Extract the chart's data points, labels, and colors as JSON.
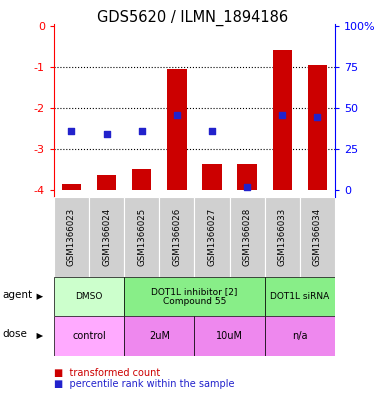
{
  "title": "GDS5620 / ILMN_1894186",
  "samples": [
    "GSM1366023",
    "GSM1366024",
    "GSM1366025",
    "GSM1366026",
    "GSM1366027",
    "GSM1366028",
    "GSM1366033",
    "GSM1366034"
  ],
  "bar_values": [
    -3.85,
    -3.62,
    -3.47,
    -1.05,
    -3.35,
    -3.35,
    -0.58,
    -0.95
  ],
  "percentile_values": [
    -2.55,
    -2.62,
    -2.57,
    -2.18,
    -2.55,
    -3.92,
    -2.18,
    -2.22
  ],
  "bar_bottom": -4.0,
  "ylim": [
    -4.15,
    0.05
  ],
  "yticks_left": [
    0,
    -1,
    -2,
    -3,
    -4
  ],
  "yticks_right_pos": [
    0,
    -1,
    -2,
    -3,
    -4
  ],
  "yticks_right_labels": [
    "100%",
    "75",
    "50",
    "25",
    "0"
  ],
  "bar_color": "#cc0000",
  "dot_color": "#2222cc",
  "agent_groups": [
    {
      "label": "DMSO",
      "start": 0,
      "end": 2,
      "color": "#ccffcc"
    },
    {
      "label": "DOT1L inhibitor [2]\nCompound 55",
      "start": 2,
      "end": 6,
      "color": "#88ee88"
    },
    {
      "label": "DOT1L siRNA",
      "start": 6,
      "end": 8,
      "color": "#88ee88"
    }
  ],
  "dose_groups": [
    {
      "label": "control",
      "start": 0,
      "end": 2,
      "color": "#ffaaff"
    },
    {
      "label": "2uM",
      "start": 2,
      "end": 4,
      "color": "#ee88ee"
    },
    {
      "label": "10uM",
      "start": 4,
      "end": 6,
      "color": "#ee88ee"
    },
    {
      "label": "n/a",
      "start": 6,
      "end": 8,
      "color": "#ee88ee"
    }
  ]
}
